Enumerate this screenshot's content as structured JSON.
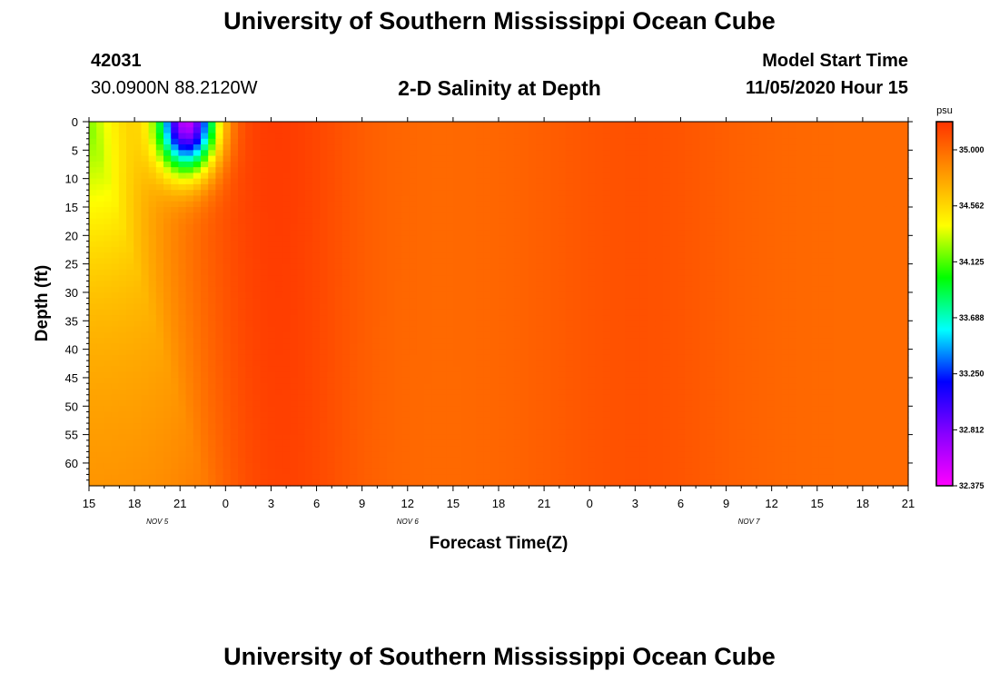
{
  "header": {
    "title_top": "University of Southern Mississippi Ocean Cube",
    "title_bottom": "University of Southern Mississippi Ocean Cube",
    "station_id": "42031",
    "station_coords": "30.0900N 88.2120W",
    "chart_title": "2-D Salinity at Depth",
    "model_start_label": "Model Start Time",
    "model_start_value": "11/05/2020 Hour 15"
  },
  "chart_data": {
    "type": "heatmap",
    "title": "2-D Salinity at Depth",
    "xlabel": "Forecast Time(Z)",
    "ylabel": "Depth (ft)",
    "x_hours_range": [
      0,
      54
    ],
    "x_tick_labels": [
      "15",
      "18",
      "21",
      "0",
      "3",
      "6",
      "9",
      "12",
      "15",
      "18",
      "21",
      "0",
      "3",
      "6",
      "9",
      "12",
      "15",
      "18",
      "21"
    ],
    "date_labels": [
      {
        "text": "NOV 5",
        "hour": 4.5
      },
      {
        "text": "NOV 6",
        "hour": 21
      },
      {
        "text": "NOV 7",
        "hour": 43.5
      }
    ],
    "ylim": [
      0,
      64
    ],
    "y_tick_labels": [
      "0",
      "5",
      "10",
      "15",
      "20",
      "25",
      "30",
      "35",
      "40",
      "45",
      "50",
      "55",
      "60"
    ],
    "colorbar": {
      "unit": "psu",
      "range": [
        32.375,
        35.22
      ],
      "tick_labels": [
        "35.000",
        "34.562",
        "34.125",
        "33.688",
        "33.250",
        "32.812",
        "32.375"
      ],
      "colors": [
        "#ff00ff",
        "#8800ff",
        "#0000ff",
        "#00ffff",
        "#00ff00",
        "#ffff00",
        "#ff9900",
        "#ff3300"
      ]
    },
    "salinity_estimates": {
      "background": 35.0,
      "maxima": [
        {
          "hour": 12,
          "value": 35.2
        },
        {
          "hour": 36,
          "value": 35.1
        }
      ],
      "surface_minimum": {
        "hour": 6.5,
        "depth": 0,
        "value": 32.6
      },
      "near_shore_low": {
        "hour": 0,
        "depth": 0,
        "value": 34.2
      }
    },
    "color_values": {
      "background": 35.0,
      "max_a": {
        "hour": 12,
        "value": 35.2
      },
      "max_b": {
        "hour": 36,
        "value": 35.1
      },
      "fresh_core": {
        "hour": 6.5,
        "depth": 0,
        "value": 32.6
      },
      "green_zone": {
        "hour": 0,
        "depth": 0,
        "value": 34.2
      }
    }
  }
}
